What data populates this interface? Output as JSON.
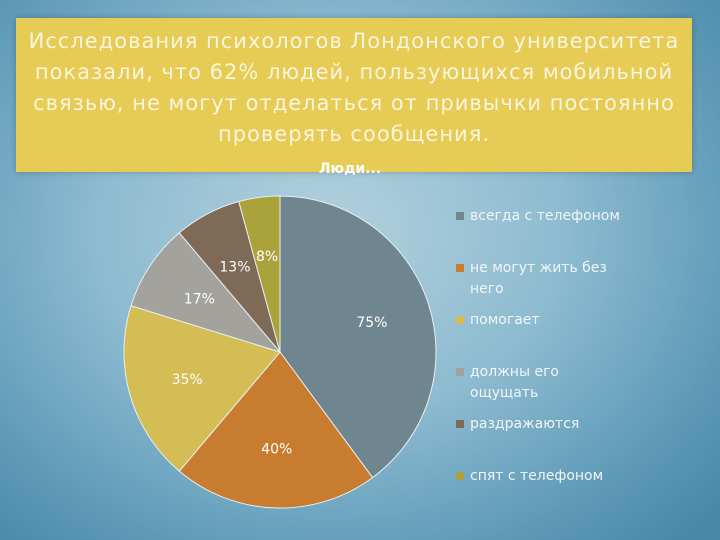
{
  "slide": {
    "title": "Исследования психологов Лондонского университета показали, что 62% людей, пользующихся мобильной связью, не могут отделаться от привычки постоянно проверять сообщения."
  },
  "chart_data": {
    "type": "pie",
    "title": "Люди...",
    "legend_position": "right",
    "categories": [
      "всегда с телефоном",
      "не могут жить без него",
      "помогает",
      "должны его ощущать",
      "раздражаются",
      "спят с телефоном"
    ],
    "values": [
      75,
      40,
      35,
      17,
      13,
      8
    ],
    "data_labels": [
      "75%",
      "40%",
      "35%",
      "17%",
      "13%",
      "8%"
    ],
    "colors": [
      "#6f8590",
      "#c87c30",
      "#d4bd55",
      "#a3a29c",
      "#7e6a57",
      "#aaa23a"
    ]
  }
}
